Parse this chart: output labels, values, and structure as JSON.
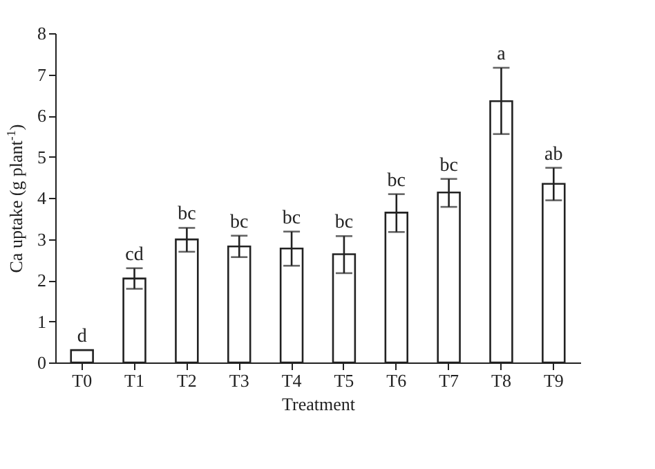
{
  "chart_data": {
    "type": "bar",
    "xlabel": "Treatment",
    "ylabel": "Ca uptake (g plant$^{-1}$)",
    "categories": [
      "T0",
      "T1",
      "T2",
      "T3",
      "T4",
      "T5",
      "T6",
      "T7",
      "T8",
      "T9"
    ],
    "values": [
      0.3,
      2.04,
      2.99,
      2.82,
      2.77,
      2.63,
      3.64,
      4.13,
      6.35,
      4.34
    ],
    "errors": [
      null,
      [
        1.79,
        2.29
      ],
      [
        2.69,
        3.27
      ],
      [
        2.56,
        3.08
      ],
      [
        2.35,
        3.18
      ],
      [
        2.17,
        3.07
      ],
      [
        3.17,
        4.09
      ],
      [
        3.78,
        4.46
      ],
      [
        5.55,
        7.16
      ],
      [
        3.94,
        4.73
      ]
    ],
    "color": "#ffffff",
    "ylim": [
      0,
      8
    ],
    "yticks": [
      0,
      1,
      2,
      3,
      4,
      5,
      6,
      7,
      8
    ],
    "grid": false,
    "annotations": [
      {
        "text": "d",
        "x": "T0",
        "y": 0.3
      },
      {
        "text": "cd",
        "x": "T1",
        "y": 2.29
      },
      {
        "text": "bc",
        "x": "T2",
        "y": 3.27
      },
      {
        "text": "bc",
        "x": "T3",
        "y": 3.08
      },
      {
        "text": "bc",
        "x": "T4",
        "y": 3.18
      },
      {
        "text": "bc",
        "x": "T5",
        "y": 3.07
      },
      {
        "text": "bc",
        "x": "T6",
        "y": 4.09
      },
      {
        "text": "bc",
        "x": "T7",
        "y": 4.46
      },
      {
        "text": "a",
        "x": "T8",
        "y": 7.16
      },
      {
        "text": "ab",
        "x": "T9",
        "y": 4.73
      }
    ]
  }
}
